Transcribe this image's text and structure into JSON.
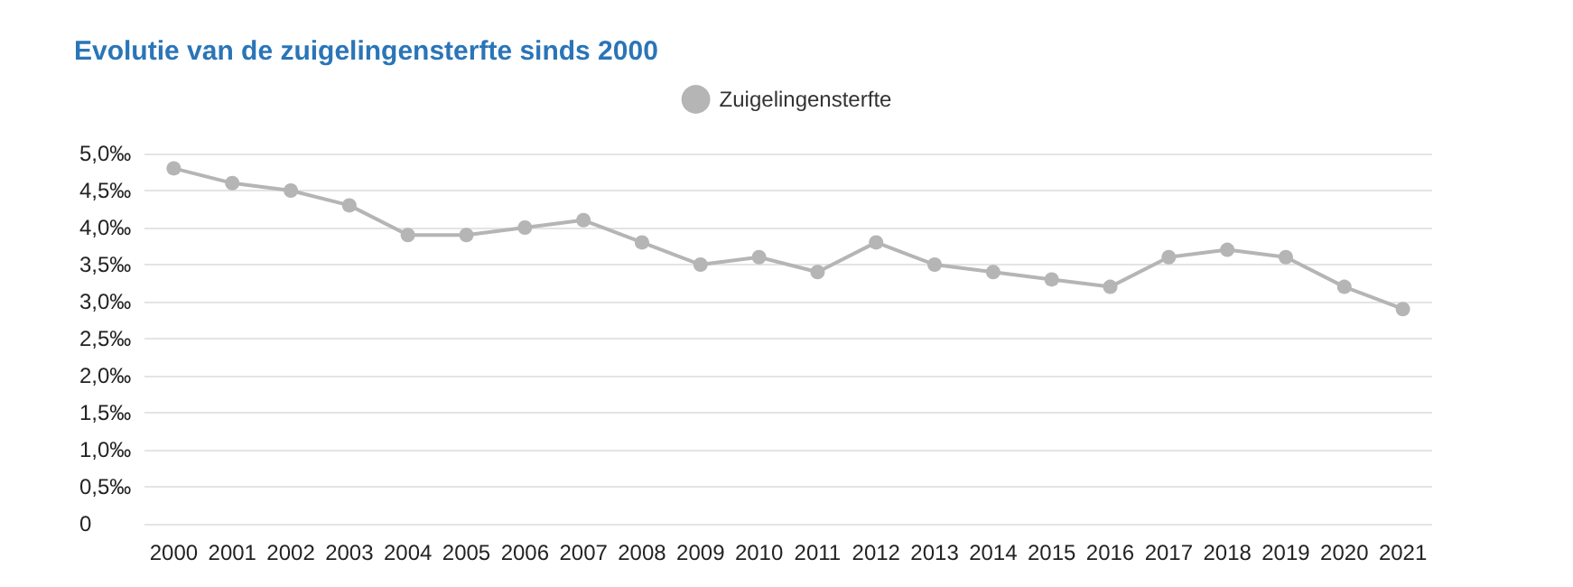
{
  "chart_data": {
    "type": "line",
    "title": "Evolutie van de zuigelingensterfte sinds 2000",
    "categories": [
      "2000",
      "2001",
      "2002",
      "2003",
      "2004",
      "2005",
      "2006",
      "2007",
      "2008",
      "2009",
      "2010",
      "2011",
      "2012",
      "2013",
      "2014",
      "2015",
      "2016",
      "2017",
      "2018",
      "2019",
      "2020",
      "2021"
    ],
    "series": [
      {
        "name": "Zuigelingensterfte",
        "color": "#b5b5b5",
        "values": [
          4.8,
          4.6,
          4.5,
          4.3,
          3.9,
          3.9,
          4.0,
          4.1,
          3.8,
          3.5,
          3.6,
          3.4,
          3.8,
          3.5,
          3.4,
          3.3,
          3.2,
          3.6,
          3.7,
          3.6,
          3.2,
          2.9
        ]
      }
    ],
    "ylim": [
      0,
      5
    ],
    "yticks": [
      0,
      {
        "value": 0.5,
        "label": "0,5‰"
      },
      {
        "value": 1,
        "label": "1,0‰"
      },
      {
        "value": 1.5,
        "label": "1,5‰"
      },
      {
        "value": 2,
        "label": "2,0‰"
      },
      {
        "value": 2.5,
        "label": "2,5‰"
      },
      {
        "value": 3,
        "label": "3,0‰"
      },
      {
        "value": 3.5,
        "label": "3,5‰"
      },
      {
        "value": 4,
        "label": "4,0‰"
      },
      {
        "value": 4.5,
        "label": "4,5‰"
      },
      {
        "value": 5,
        "label": "5,0‰"
      }
    ],
    "grid": "y",
    "legend": "top",
    "marker": "circle",
    "line_style": "solid"
  }
}
